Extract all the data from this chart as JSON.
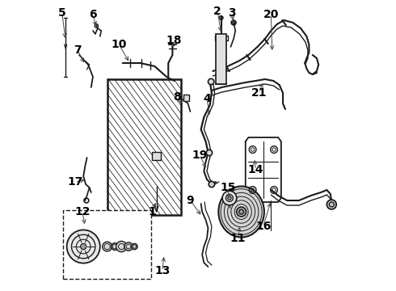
{
  "bg_color": "#ffffff",
  "line_color": "#1a1a1a",
  "font_size": 10,
  "font_weight": "bold",
  "figsize": [
    4.9,
    3.6
  ],
  "dpi": 100
}
